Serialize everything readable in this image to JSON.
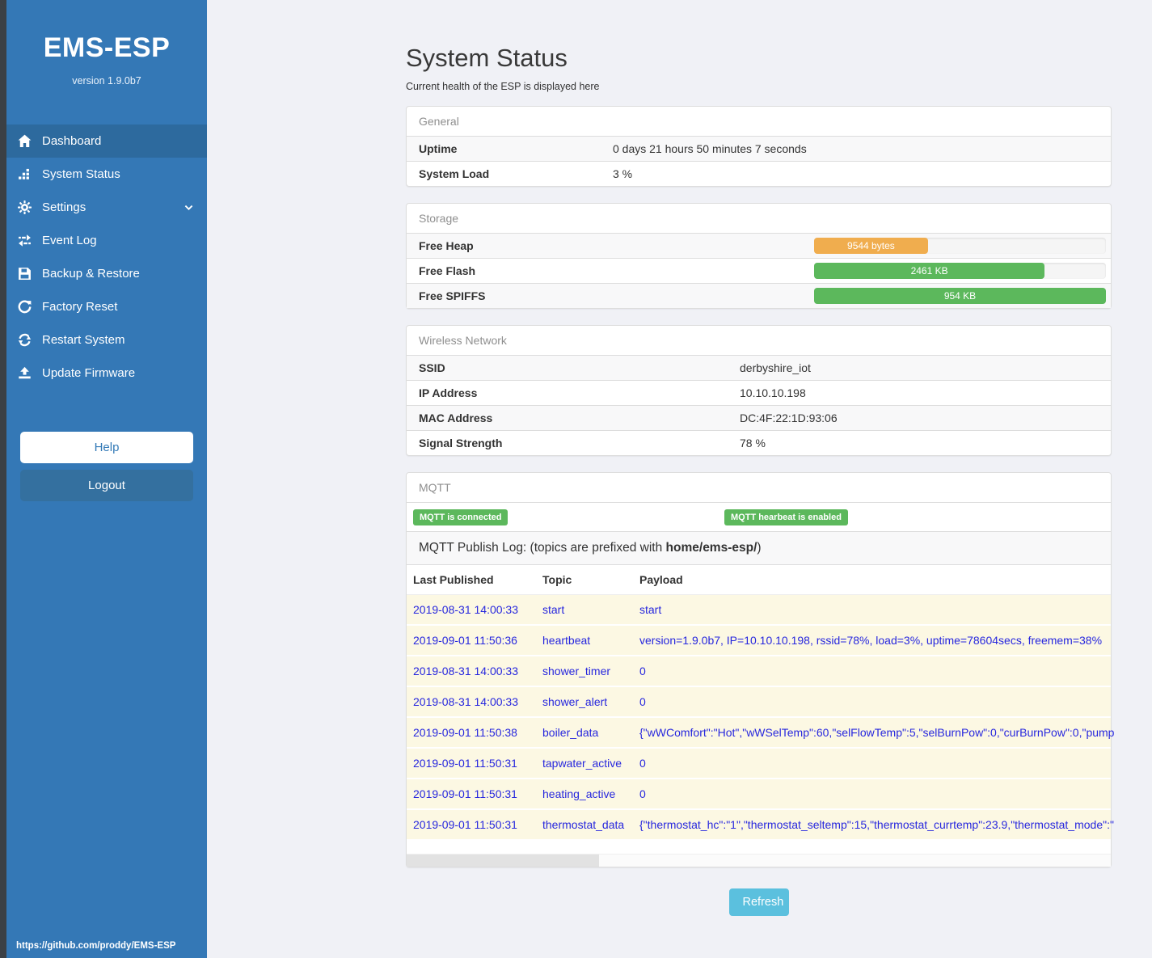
{
  "sidebar": {
    "brand": "EMS-ESP",
    "version": "version 1.9.0b7",
    "items": [
      {
        "label": "Dashboard",
        "icon": "home-icon",
        "active": true
      },
      {
        "label": "System Status",
        "icon": "system-status-icon",
        "active": false
      },
      {
        "label": "Settings",
        "icon": "gear-icon",
        "active": false,
        "has_submenu": true
      },
      {
        "label": "Event Log",
        "icon": "exchange-icon",
        "active": false
      },
      {
        "label": "Backup & Restore",
        "icon": "save-icon",
        "active": false
      },
      {
        "label": "Factory Reset",
        "icon": "rotate-icon",
        "active": false
      },
      {
        "label": "Restart System",
        "icon": "refresh-icon",
        "active": false
      },
      {
        "label": "Update Firmware",
        "icon": "upload-icon",
        "active": false
      }
    ],
    "help_label": "Help",
    "logout_label": "Logout",
    "footer_url": "https://github.com/proddy/EMS-ESP"
  },
  "header": {
    "title": "System Status",
    "subtitle": "Current health of the ESP is displayed here"
  },
  "panels": {
    "general": {
      "title": "General",
      "rows": [
        {
          "label": "Uptime",
          "value": "0 days 21 hours 50 minutes 7 seconds"
        },
        {
          "label": "System Load",
          "value": "3 %"
        }
      ]
    },
    "storage": {
      "title": "Storage",
      "rows": [
        {
          "label": "Free Heap",
          "bar_text": "9544 bytes",
          "percent": 39,
          "color": "#f0ad4e"
        },
        {
          "label": "Free Flash",
          "bar_text": "2461 KB",
          "percent": 79,
          "color": "#5cb85c"
        },
        {
          "label": "Free SPIFFS",
          "bar_text": "954 KB",
          "percent": 100,
          "color": "#5cb85c"
        }
      ]
    },
    "wireless": {
      "title": "Wireless Network",
      "rows": [
        {
          "label": "SSID",
          "value": "derbyshire_iot"
        },
        {
          "label": "IP Address",
          "value": "10.10.10.198"
        },
        {
          "label": "MAC Address",
          "value": "DC:4F:22:1D:93:06"
        },
        {
          "label": "Signal Strength",
          "value": "78 %"
        }
      ]
    },
    "mqtt": {
      "title": "MQTT",
      "badges": [
        "MQTT is connected",
        "MQTT hearbeat is enabled"
      ],
      "log_prefix": "MQTT Publish Log: (topics are prefixed with ",
      "log_bold": "home/ems-esp/",
      "log_suffix": ")",
      "table": {
        "headers": [
          "Last Published",
          "Topic",
          "Payload"
        ],
        "rows": [
          {
            "last_published": "2019-08-31 14:00:33",
            "topic": "start",
            "payload": "start"
          },
          {
            "last_published": "2019-09-01 11:50:36",
            "topic": "heartbeat",
            "payload": "version=1.9.0b7, IP=10.10.10.198, rssid=78%, load=3%, uptime=78604secs, freemem=38%"
          },
          {
            "last_published": "2019-08-31 14:00:33",
            "topic": "shower_timer",
            "payload": "0"
          },
          {
            "last_published": "2019-08-31 14:00:33",
            "topic": "shower_alert",
            "payload": "0"
          },
          {
            "last_published": "2019-09-01 11:50:38",
            "topic": "boiler_data",
            "payload": "{\"wWComfort\":\"Hot\",\"wWSelTemp\":60,\"selFlowTemp\":5,\"selBurnPow\":0,\"curBurnPow\":0,\"pump"
          },
          {
            "last_published": "2019-09-01 11:50:31",
            "topic": "tapwater_active",
            "payload": "0"
          },
          {
            "last_published": "2019-09-01 11:50:31",
            "topic": "heating_active",
            "payload": "0"
          },
          {
            "last_published": "2019-09-01 11:50:31",
            "topic": "thermostat_data",
            "payload": "{\"thermostat_hc\":\"1\",\"thermostat_seltemp\":15,\"thermostat_currtemp\":23.9,\"thermostat_mode\":\""
          }
        ]
      }
    }
  },
  "refresh_label": "Refresh",
  "colors": {
    "sidebar_blue": "#3478b6",
    "sidebar_active_blue": "#2d6a9e",
    "edge_strip_gray": "#3b4045",
    "badge_green": "#5cb85c",
    "bar_orange": "#f0ad4e",
    "bar_green": "#5cb85c",
    "refresh_blue": "#5bc0de",
    "log_text_blue": "#2727de",
    "row_cream": "#fcf8e3"
  }
}
